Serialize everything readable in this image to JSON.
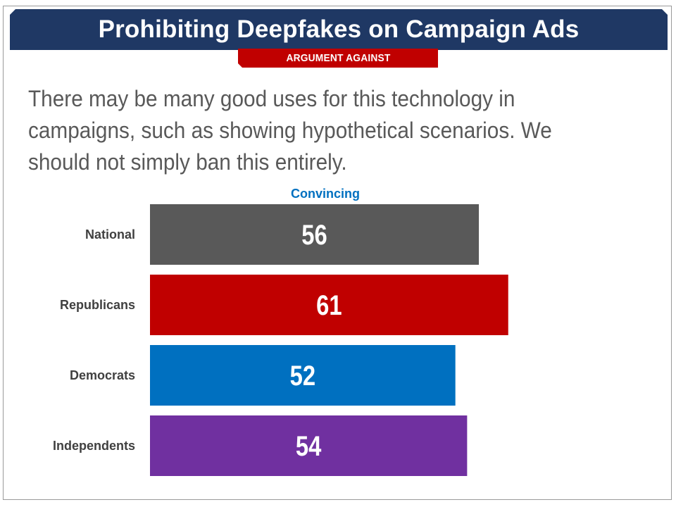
{
  "header": {
    "title": "Prohibiting Deepfakes on Campaign Ads",
    "tag": "ARGUMENT AGAINST"
  },
  "body": {
    "argument_text": "There may be many good uses for this technology in campaigns, such as showing hypothetical scenarios. We should not simply ban this entirely."
  },
  "colors": {
    "banner": "#1f3864",
    "tag": "#c00000",
    "national": "#595959",
    "republicans": "#c00000",
    "democrats": "#0070c0",
    "independents": "#7030a0"
  },
  "chart_data": {
    "type": "bar",
    "orientation": "horizontal",
    "column_header": "Convincing",
    "categories": [
      "National",
      "Republicans",
      "Democrats",
      "Independents"
    ],
    "values": [
      56,
      61,
      52,
      54
    ],
    "bar_colors": [
      "#595959",
      "#c00000",
      "#0070c0",
      "#7030a0"
    ],
    "xlim": [
      0,
      100
    ],
    "grid": false,
    "legend": "none"
  }
}
